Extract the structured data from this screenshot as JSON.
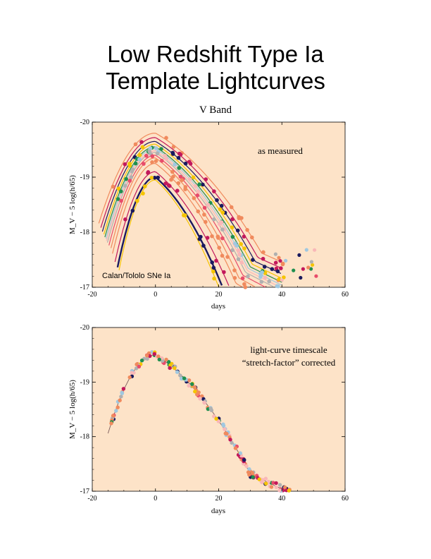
{
  "title_line1": "Low Redshift Type Ia",
  "title_line2": "Template Lightcurves",
  "subtitle": "V Band",
  "colors": {
    "panel_bg": "#fde3c8",
    "palette": [
      "#f08a5d",
      "#c2185b",
      "#1a1a5e",
      "#f5c400",
      "#1f8f4e",
      "#a0c8e0",
      "#f9b8b8",
      "#b0b0b0",
      "#e84c6a",
      "#f08a5d"
    ]
  },
  "chart_data": [
    {
      "type": "scatter",
      "xlabel": "days",
      "ylabel": "M_V − 5 log(h/65)",
      "xlim": [
        -20,
        60
      ],
      "ylim": [
        -17,
        -20
      ],
      "x_ticks": [
        -20,
        0,
        20,
        40,
        60
      ],
      "y_ticks": [
        -20,
        -19,
        -18,
        -17
      ],
      "annotations": [
        "as measured",
        "Calan/Tololo SNe Ia"
      ],
      "curve_family": {
        "peaks": [
          -19.8,
          -19.72,
          -19.65,
          -19.6,
          -19.55,
          -19.52,
          -19.48,
          -19.45,
          -19.4,
          -19.35,
          -19.25,
          -19.1,
          -19.0,
          -18.95
        ],
        "stretches": [
          1.12,
          1.08,
          1.05,
          1.02,
          1.0,
          0.98,
          0.97,
          0.95,
          0.92,
          0.88,
          0.85,
          0.8,
          0.75,
          0.72
        ]
      }
    },
    {
      "type": "scatter",
      "xlabel": "days",
      "ylabel": "M_V − 5 log(h/65)",
      "xlim": [
        -20,
        60
      ],
      "ylim": [
        -17,
        -20
      ],
      "x_ticks": [
        -20,
        0,
        20,
        40,
        60
      ],
      "y_ticks": [
        -20,
        -19,
        -18,
        -17
      ],
      "annotations": [
        "light-curve timescale",
        "“stretch-factor” corrected"
      ],
      "template": {
        "peak": -19.5,
        "stretch": 1.0
      }
    }
  ]
}
